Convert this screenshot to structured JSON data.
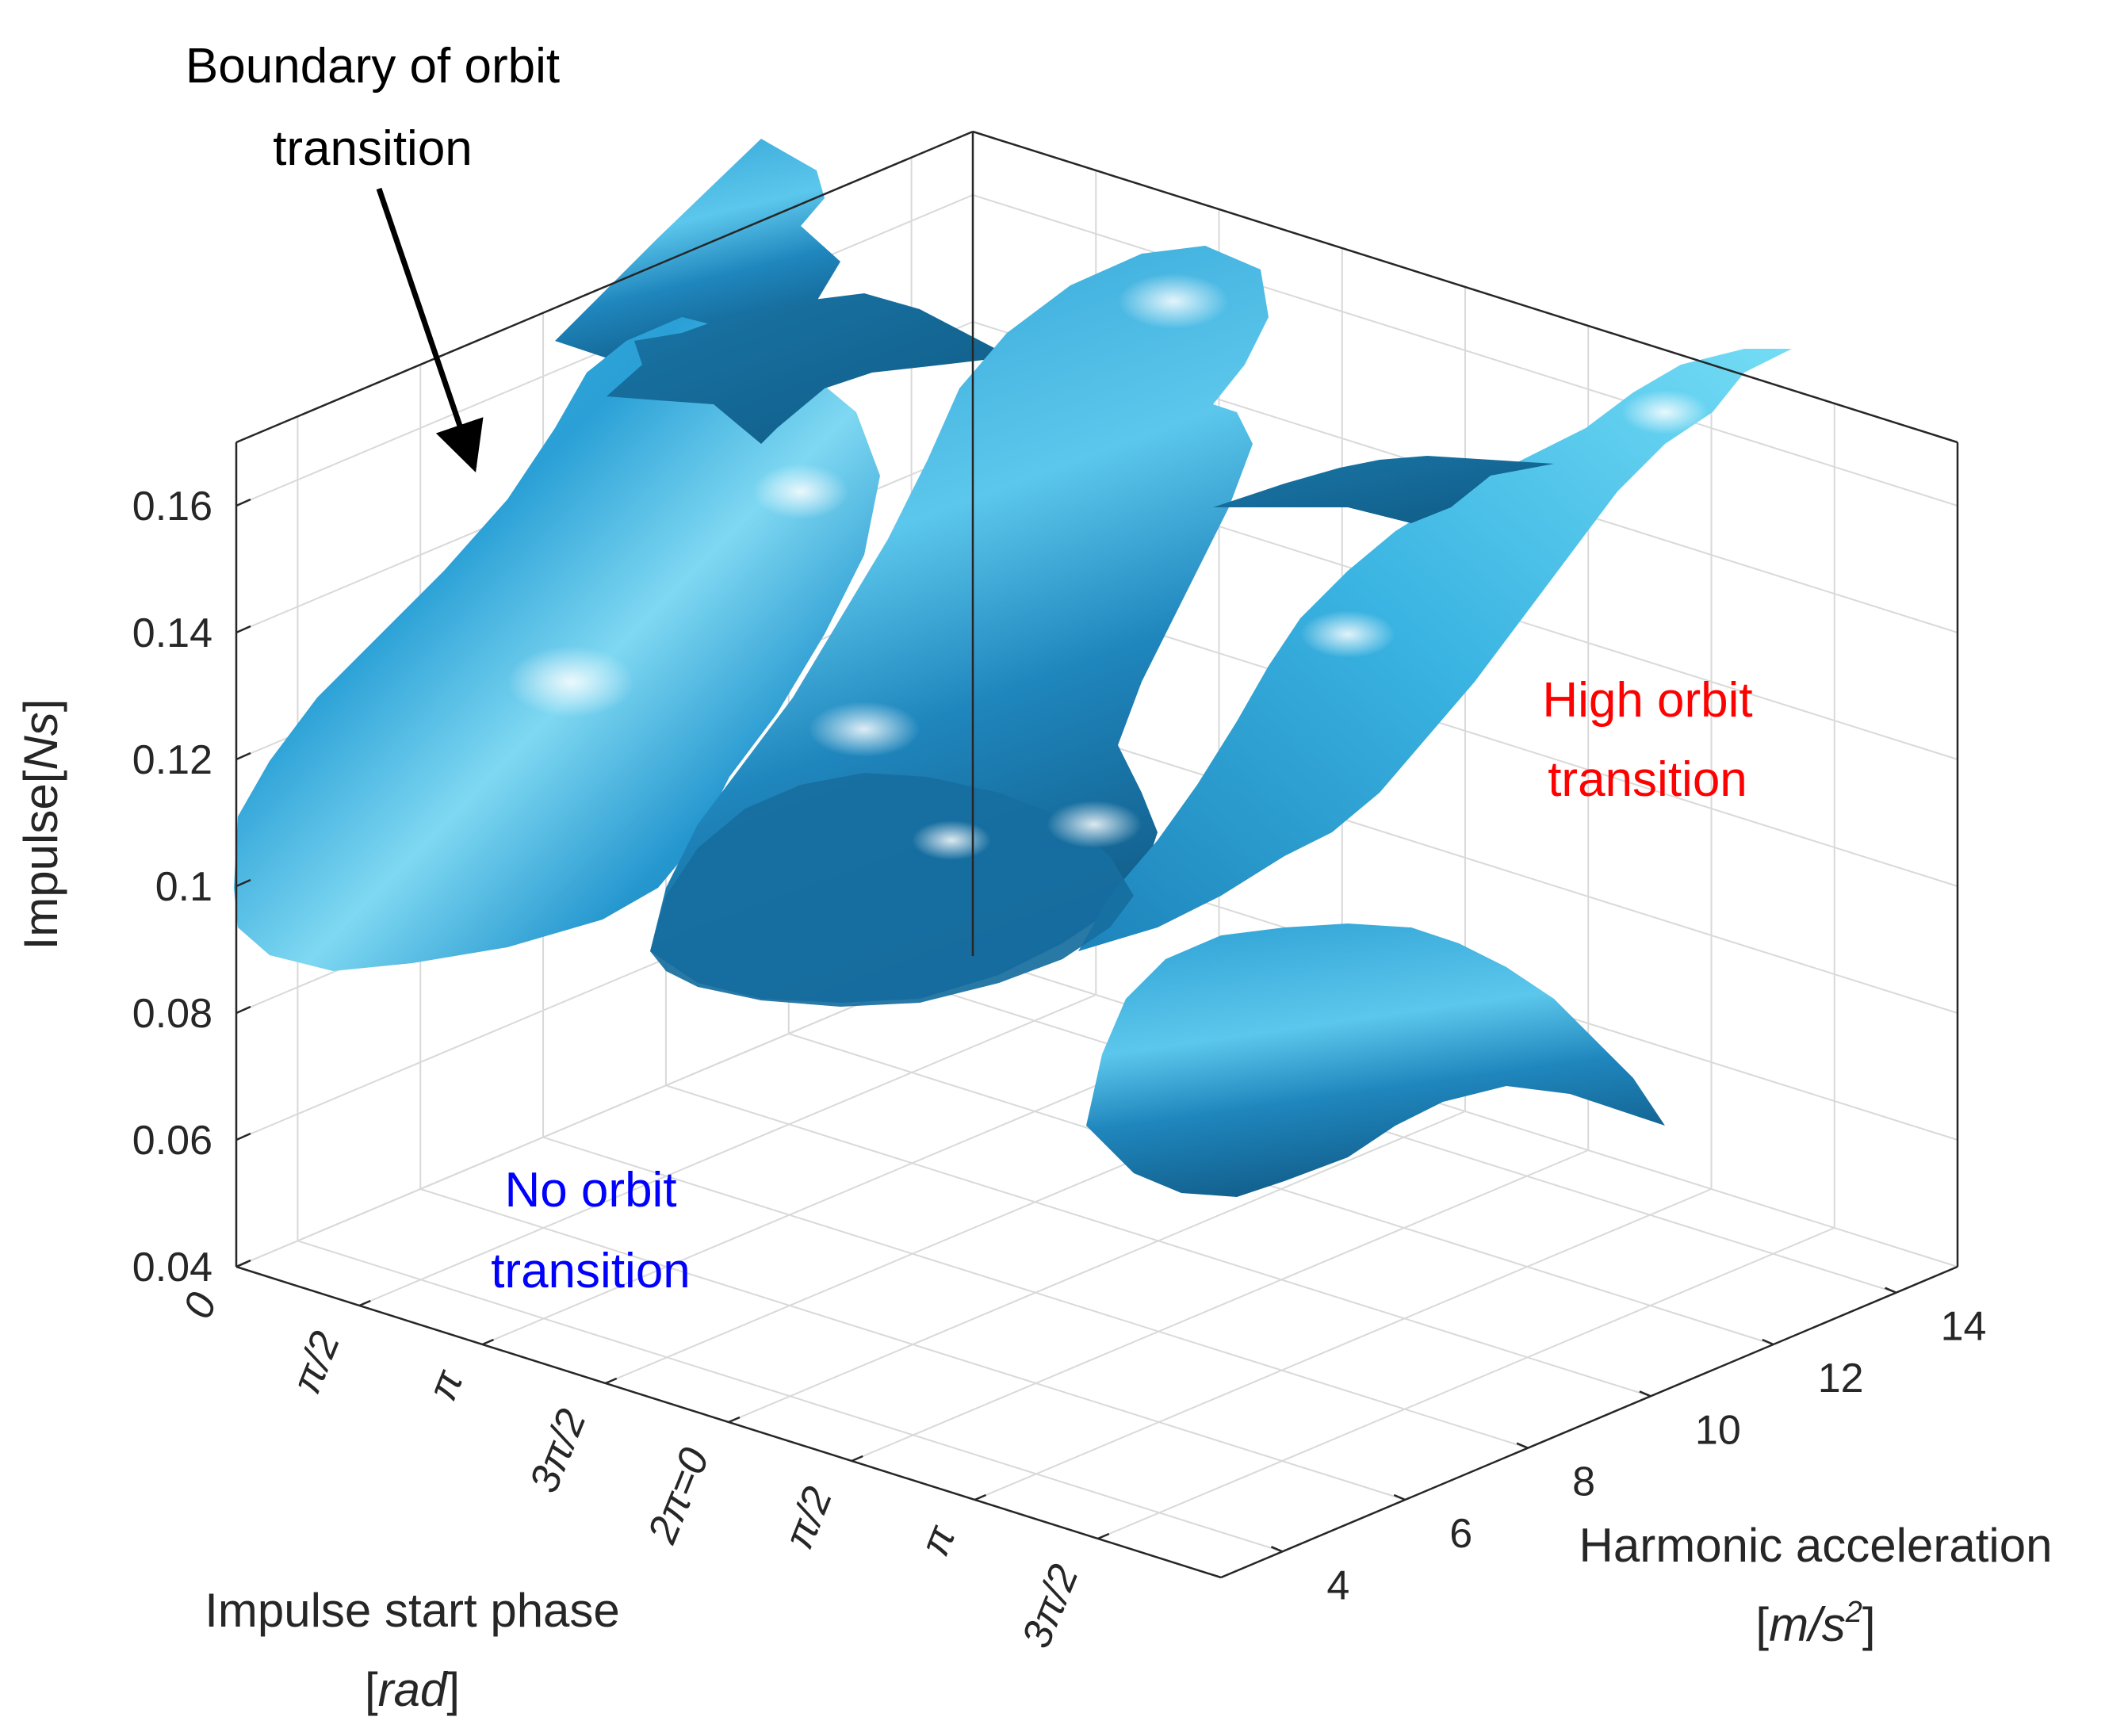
{
  "chart_data": {
    "type": "isosurface-3d",
    "zlabel_main": "Impulse",
    "zlabel_unit": "Ns",
    "xlabel_main": "Impulse start phase",
    "xlabel_unit": "rad",
    "ylabel_main": "Harmonic acceleration",
    "ylabel_unit_base": "m/s",
    "ylabel_unit_exp": "2",
    "z_ticks": [
      0.04,
      0.06,
      0.08,
      0.1,
      0.12,
      0.14,
      0.16
    ],
    "z_tick_labels": [
      "0.04",
      "0.06",
      "0.08",
      "0.1",
      "0.12",
      "0.14",
      "0.16"
    ],
    "zlim": [
      0.04,
      0.17
    ],
    "x_ticks": [
      0,
      1,
      2,
      3,
      4,
      5,
      6,
      7
    ],
    "x_tick_labels": [
      "0",
      "π/2",
      "π",
      "3π/2",
      "2π=0",
      "π/2",
      "π",
      "3π/2"
    ],
    "xlim": [
      0,
      8
    ],
    "y_ticks": [
      4,
      6,
      8,
      10,
      12,
      14
    ],
    "y_tick_labels": [
      "4",
      "6",
      "8",
      "10",
      "12",
      "14"
    ],
    "ylim": [
      3,
      15
    ],
    "grid": true,
    "surface_color": "#1f90c8",
    "annotations": [
      {
        "text_lines": [
          "Boundary of orbit",
          "transition"
        ],
        "color": "#000000",
        "arrow": true
      },
      {
        "text_lines": [
          "High orbit",
          "transition"
        ],
        "color": "#ff0000"
      },
      {
        "text_lines": [
          "No orbit",
          "transition"
        ],
        "color": "#0000ff"
      }
    ]
  }
}
